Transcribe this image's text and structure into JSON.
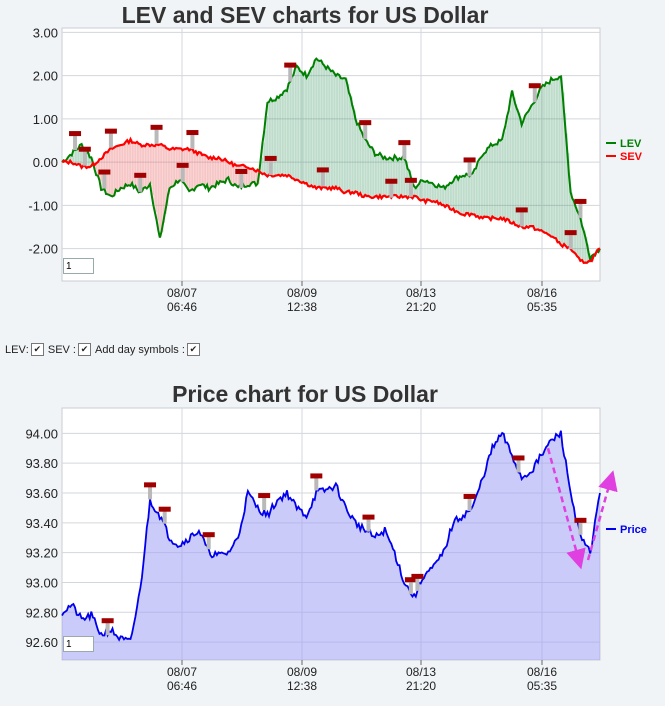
{
  "chart_data": [
    {
      "type": "line",
      "title": "LEV and SEV charts for US Dollar",
      "xlabel": "",
      "ylabel": "",
      "ylim": [
        -2.75,
        3.1
      ],
      "yticks": [
        "3.00",
        "2.00",
        "1.00",
        "0.00",
        "-1.00",
        "-2.00"
      ],
      "xticks": [
        {
          "date": "08/07",
          "time": "06:46"
        },
        {
          "date": "08/09",
          "time": "12:38"
        },
        {
          "date": "08/13",
          "time": "21:20"
        },
        {
          "date": "08/16",
          "time": "05:35"
        }
      ],
      "legend": "right",
      "grid": true,
      "zoom_value": "1",
      "series": [
        {
          "name": "LEV",
          "color": "#008000",
          "values": [
            0.0,
            0.2,
            0.4,
            0.1,
            -0.6,
            -0.8,
            -0.6,
            -0.5,
            -0.7,
            -0.5,
            -1.8,
            -0.6,
            -0.4,
            -0.7,
            -0.5,
            -0.6,
            -0.5,
            -0.4,
            -0.6,
            -0.5,
            -0.5,
            1.4,
            1.5,
            1.7,
            2.2,
            2.0,
            2.4,
            2.2,
            2.0,
            1.9,
            1.0,
            0.5,
            0.2,
            0.1,
            0.1,
            0.1,
            -0.6,
            -0.4,
            -0.5,
            -0.6,
            -0.4,
            -0.3,
            -0.3,
            0.2,
            0.4,
            0.5,
            1.6,
            0.9,
            1.3,
            1.7,
            1.9,
            2.0,
            -0.7,
            -1.3,
            -2.2,
            -2.0
          ]
        },
        {
          "name": "SEV",
          "color": "#ff0000",
          "values": [
            0.0,
            0.0,
            -0.1,
            -0.1,
            0.1,
            0.3,
            0.4,
            0.5,
            0.4,
            0.4,
            0.4,
            0.3,
            0.3,
            0.3,
            0.2,
            0.1,
            0.1,
            0.0,
            -0.1,
            -0.1,
            -0.2,
            -0.3,
            -0.3,
            -0.3,
            -0.4,
            -0.5,
            -0.6,
            -0.6,
            -0.6,
            -0.7,
            -0.7,
            -0.8,
            -0.8,
            -0.8,
            -0.8,
            -0.8,
            -0.8,
            -0.9,
            -0.9,
            -1.0,
            -1.1,
            -1.2,
            -1.2,
            -1.3,
            -1.3,
            -1.3,
            -1.4,
            -1.5,
            -1.5,
            -1.6,
            -1.7,
            -1.9,
            -2.0,
            -2.3,
            -2.3,
            -2.0
          ]
        }
      ]
    },
    {
      "type": "area",
      "title": "Price chart for US Dollar",
      "xlabel": "",
      "ylabel": "",
      "ylim": [
        92.48,
        94.17
      ],
      "yticks": [
        "94.00",
        "93.80",
        "93.60",
        "93.40",
        "93.20",
        "93.00",
        "92.80",
        "92.60"
      ],
      "xticks": [
        {
          "date": "08/07",
          "time": "06:46"
        },
        {
          "date": "08/09",
          "time": "12:38"
        },
        {
          "date": "08/13",
          "time": "21:20"
        },
        {
          "date": "08/16",
          "time": "05:35"
        }
      ],
      "legend": "right",
      "grid": true,
      "zoom_value": "1",
      "series": [
        {
          "name": "Price",
          "color": "#0000ee",
          "values": [
            92.8,
            92.85,
            92.75,
            92.78,
            92.65,
            92.68,
            92.62,
            92.6,
            92.95,
            93.55,
            93.45,
            93.3,
            93.25,
            93.3,
            93.35,
            93.2,
            93.18,
            93.2,
            93.3,
            93.6,
            93.5,
            93.45,
            93.55,
            93.6,
            93.5,
            93.45,
            93.6,
            93.62,
            93.65,
            93.5,
            93.4,
            93.35,
            93.3,
            93.35,
            93.2,
            93.0,
            92.9,
            93.05,
            93.1,
            93.2,
            93.4,
            93.45,
            93.5,
            93.7,
            93.9,
            94.0,
            93.85,
            93.7,
            93.75,
            93.85,
            93.95,
            94.0,
            93.6,
            93.3,
            93.2,
            93.6
          ]
        }
      ]
    }
  ]
}
